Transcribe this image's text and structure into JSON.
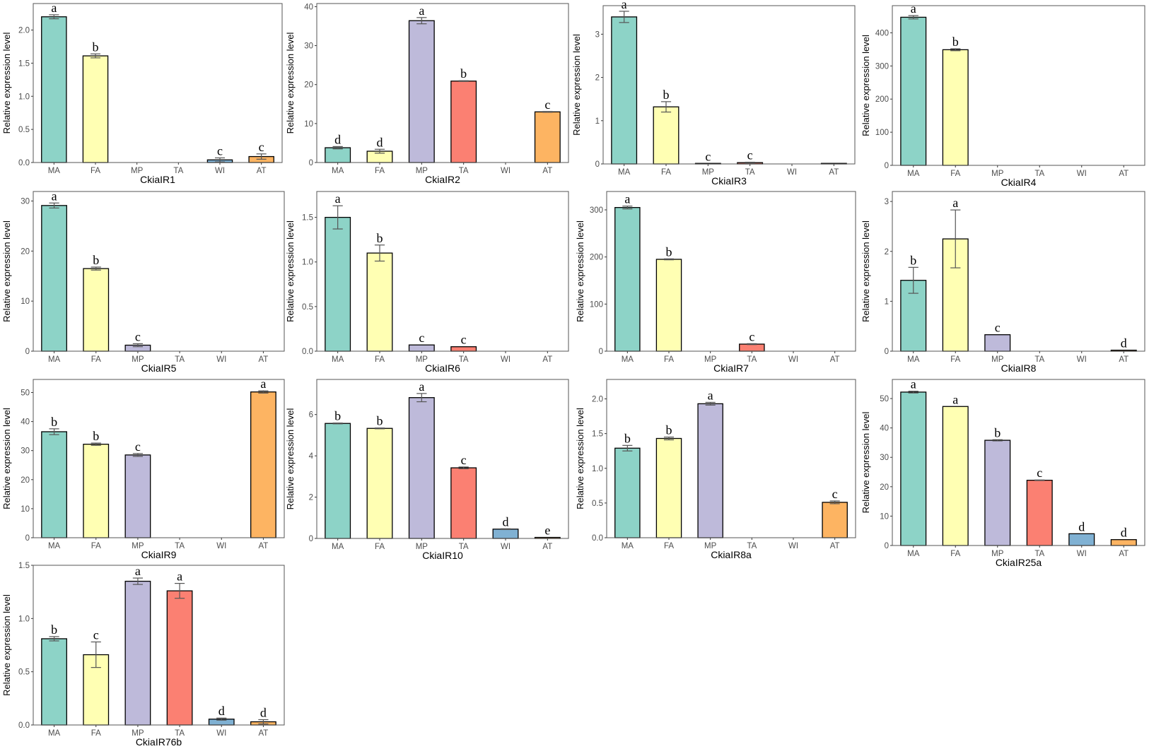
{
  "category_colors": [
    "#8DD3C7",
    "#FFFFB3",
    "#BEBADA",
    "#FB8072",
    "#80B1D3",
    "#FDB462"
  ],
  "chart_data": [
    {
      "type": "bar",
      "xlabel": "CkiaIR1",
      "ylabel": "Relative expression level",
      "categories": [
        "MA",
        "FA",
        "MP",
        "TA",
        "WI",
        "AT"
      ],
      "values": [
        2.2,
        1.61,
        0,
        0,
        0.04,
        0.09
      ],
      "errors": [
        0.03,
        0.03,
        0,
        0,
        0.03,
        0.04
      ],
      "letters": [
        "a",
        "b",
        "",
        "",
        "c",
        "c"
      ],
      "ylim": [
        0,
        2.4
      ],
      "yticks": [
        "0.0",
        "0.5",
        "1.0",
        "1.5",
        "2.0"
      ]
    },
    {
      "type": "bar",
      "xlabel": "CkiaIR2",
      "ylabel": "Relative expression level",
      "categories": [
        "MA",
        "FA",
        "MP",
        "TA",
        "WI",
        "AT"
      ],
      "values": [
        3.8,
        2.9,
        36.4,
        20.9,
        0,
        13.0
      ],
      "errors": [
        0.3,
        0.5,
        0.8,
        0.1,
        0,
        0.1
      ],
      "letters": [
        "d",
        "d",
        "a",
        "b",
        "",
        "c"
      ],
      "ylim": [
        0,
        40.8
      ],
      "yticks": [
        "0",
        "10",
        "20",
        "30",
        "40"
      ]
    },
    {
      "type": "bar",
      "xlabel": "CkiaIR3",
      "ylabel": "Relative expression level",
      "categories": [
        "MA",
        "FA",
        "MP",
        "TA",
        "WI",
        "AT"
      ],
      "values": [
        3.4,
        1.32,
        0.01,
        0.03,
        0,
        0.01
      ],
      "errors": [
        0.13,
        0.12,
        0,
        0.01,
        0,
        0
      ],
      "letters": [
        "a",
        "b",
        "c",
        "c",
        "",
        ""
      ],
      "ylim": [
        0,
        3.66
      ],
      "yticks": [
        "0",
        "1",
        "2",
        "3"
      ]
    },
    {
      "type": "bar",
      "xlabel": "CkiaIR4",
      "ylabel": "Relative expression level",
      "categories": [
        "MA",
        "FA",
        "MP",
        "TA",
        "WI",
        "AT"
      ],
      "values": [
        447,
        349,
        0,
        0,
        0,
        0
      ],
      "errors": [
        5,
        3,
        0,
        0,
        0,
        0
      ],
      "letters": [
        "a",
        "b",
        "",
        "",
        "",
        ""
      ],
      "ylim": [
        0,
        482
      ],
      "yticks": [
        "0",
        "100",
        "200",
        "300",
        "400"
      ]
    },
    {
      "type": "bar",
      "xlabel": "CkiaIR5",
      "ylabel": "Relative expression level",
      "categories": [
        "MA",
        "FA",
        "MP",
        "TA",
        "WI",
        "AT"
      ],
      "values": [
        29.1,
        16.5,
        1.2,
        0,
        0,
        0
      ],
      "errors": [
        0.5,
        0.3,
        0.3,
        0,
        0,
        0
      ],
      "letters": [
        "a",
        "b",
        "c",
        "",
        "",
        ""
      ],
      "ylim": [
        0,
        31.9
      ],
      "yticks": [
        "0",
        "10",
        "20",
        "30"
      ]
    },
    {
      "type": "bar",
      "xlabel": "CkiaIR6",
      "ylabel": "Relative expression level",
      "categories": [
        "MA",
        "FA",
        "MP",
        "TA",
        "WI",
        "AT"
      ],
      "values": [
        1.5,
        1.1,
        0.07,
        0.05,
        0,
        0
      ],
      "errors": [
        0.13,
        0.09,
        0,
        0,
        0,
        0
      ],
      "letters": [
        "a",
        "b",
        "c",
        "c",
        "",
        ""
      ],
      "ylim": [
        0,
        1.79
      ],
      "yticks": [
        "0.0",
        "0.5",
        "1.0",
        "1.5"
      ]
    },
    {
      "type": "bar",
      "xlabel": "CkiaIR7",
      "ylabel": "Relative expression level",
      "categories": [
        "MA",
        "FA",
        "MP",
        "TA",
        "WI",
        "AT"
      ],
      "values": [
        305,
        195,
        0,
        15,
        0,
        0
      ],
      "errors": [
        3,
        1,
        0,
        1,
        0,
        0
      ],
      "letters": [
        "a",
        "b",
        "",
        "c",
        "",
        ""
      ],
      "ylim": [
        0,
        339
      ],
      "yticks": [
        "0",
        "100",
        "200",
        "300"
      ]
    },
    {
      "type": "bar",
      "xlabel": "CkiaIR8",
      "ylabel": "Relative expression level",
      "categories": [
        "MA",
        "FA",
        "MP",
        "TA",
        "WI",
        "AT"
      ],
      "values": [
        1.42,
        2.25,
        0.33,
        0,
        0,
        0.02
      ],
      "errors": [
        0.26,
        0.58,
        0,
        0,
        0,
        0
      ],
      "letters": [
        "b",
        "a",
        "c",
        "",
        "",
        "d"
      ],
      "ylim": [
        0,
        3.2
      ],
      "yticks": [
        "0",
        "1",
        "2",
        "3"
      ]
    },
    {
      "type": "bar",
      "xlabel": "CkiaIR9",
      "ylabel": "Relative expression level",
      "categories": [
        "MA",
        "FA",
        "MP",
        "TA",
        "WI",
        "AT"
      ],
      "values": [
        36.5,
        32.2,
        28.5,
        0,
        0,
        50.2
      ],
      "errors": [
        1.0,
        0.4,
        0.5,
        0,
        0,
        0.4
      ],
      "letters": [
        "b",
        "b",
        "c",
        "",
        "",
        "a"
      ],
      "ylim": [
        0,
        54.5
      ],
      "yticks": [
        "0",
        "10",
        "20",
        "30",
        "40",
        "50"
      ]
    },
    {
      "type": "bar",
      "xlabel": "CkiaIR10",
      "ylabel": "Relative expression level",
      "categories": [
        "MA",
        "FA",
        "MP",
        "TA",
        "WI",
        "AT"
      ],
      "values": [
        5.57,
        5.33,
        6.82,
        3.42,
        0.45,
        0.05
      ],
      "errors": [
        0.02,
        0.02,
        0.2,
        0.04,
        0.02,
        0
      ],
      "letters": [
        "b",
        "b",
        "a",
        "c",
        "d",
        "e"
      ],
      "ylim": [
        0,
        7.7
      ],
      "yticks": [
        "0",
        "2",
        "4",
        "6"
      ]
    },
    {
      "type": "bar",
      "xlabel": "CkiaIR8a",
      "ylabel": "Relative expression level",
      "categories": [
        "MA",
        "FA",
        "MP",
        "TA",
        "WI",
        "AT"
      ],
      "values": [
        1.29,
        1.43,
        1.93,
        0,
        0,
        0.51
      ],
      "errors": [
        0.04,
        0.02,
        0.02,
        0,
        0,
        0.02
      ],
      "letters": [
        "b",
        "b",
        "a",
        "",
        "",
        "c"
      ],
      "ylim": [
        0,
        2.28
      ],
      "yticks": [
        "0.0",
        "0.5",
        "1.0",
        "1.5",
        "2.0"
      ]
    },
    {
      "type": "bar",
      "xlabel": "CkiaIR25a",
      "ylabel": "Relative expression level",
      "categories": [
        "MA",
        "FA",
        "MP",
        "TA",
        "WI",
        "AT"
      ],
      "values": [
        52.2,
        47.3,
        35.8,
        22.2,
        4.0,
        2.0
      ],
      "errors": [
        0.3,
        0,
        0.2,
        0.1,
        0,
        0
      ],
      "letters": [
        "a",
        "a",
        "b",
        "c",
        "d",
        "d"
      ],
      "ylim": [
        0,
        56.5
      ],
      "yticks": [
        "0",
        "10",
        "20",
        "30",
        "40",
        "50"
      ]
    },
    {
      "type": "bar",
      "xlabel": "CkiaIR76b",
      "ylabel": "Relative expression level",
      "categories": [
        "MA",
        "FA",
        "MP",
        "TA",
        "WI",
        "AT"
      ],
      "values": [
        0.81,
        0.66,
        1.35,
        1.26,
        0.055,
        0.03
      ],
      "errors": [
        0.02,
        0.12,
        0.03,
        0.07,
        0.01,
        0.02
      ],
      "letters": [
        "b",
        "c",
        "a",
        "a",
        "d",
        "d"
      ],
      "ylim": [
        0,
        1.5
      ],
      "yticks": [
        "0.0",
        "0.5",
        "1.0",
        "1.5"
      ]
    }
  ]
}
